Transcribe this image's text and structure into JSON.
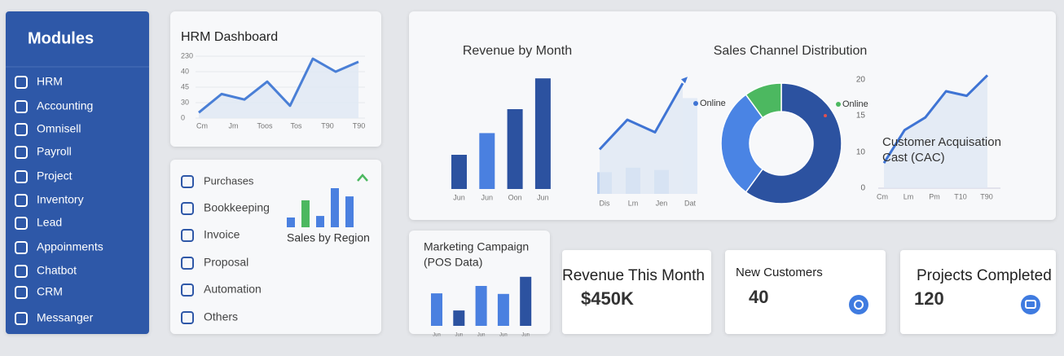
{
  "sidebar": {
    "title": "Modules",
    "items": [
      "HRM",
      "Accounting",
      "Omnisell",
      "Payroll",
      "Project",
      "Inventory",
      "Lead",
      "Appoinments",
      "Chatbot",
      "CRM",
      "Messanger"
    ]
  },
  "hrm_chart": {
    "type": "line",
    "title": "HRM Dashboard",
    "y_labels": [
      "230",
      "40",
      "45",
      "30",
      "0"
    ],
    "x_labels": [
      "Cm",
      "Jm",
      "Toos",
      "Tos",
      "T90",
      "T90"
    ],
    "values": [
      9,
      39,
      30,
      59,
      20,
      96,
      75,
      91
    ],
    "color": "#4a7fd6"
  },
  "module_list": {
    "items": [
      "Purchases",
      "Bookkeeping",
      "Invoice",
      "Proposal",
      "Automation",
      "Others"
    ]
  },
  "sales_region": {
    "type": "bar",
    "title": "Sales by Region",
    "values": [
      25,
      69,
      29,
      100,
      79
    ],
    "colors": [
      "#4a80e0",
      "#4cb860",
      "#4a80e0",
      "#4a80e0",
      "#4a80e0"
    ]
  },
  "revenue_month": {
    "type": "bar",
    "title": "Revenue by Month",
    "categories": [
      "Jun",
      "Jun",
      "Oon",
      "Jun"
    ],
    "values": [
      30,
      49,
      70,
      97
    ],
    "colors": [
      "#2c52a0",
      "#4a80e0",
      "#2c52a0",
      "#2c52a0"
    ]
  },
  "trend": {
    "type": "line",
    "legend": "Online",
    "categories": [
      "Dis",
      "Lm",
      "Jen",
      "Dat"
    ],
    "values": [
      39,
      65,
      54,
      97
    ],
    "bar_values": [
      19,
      23,
      21,
      84
    ],
    "color": "#3f74d4"
  },
  "sales_channel": {
    "type": "pie",
    "title": "Sales Channel Distribution",
    "legend": "Online",
    "values": [
      60,
      30,
      10
    ],
    "colors": [
      "#2c52a0",
      "#4a84e4",
      "#4cb860"
    ]
  },
  "cac": {
    "type": "line",
    "title_lines": [
      "Customer Acquisation",
      "Cast (CAC)"
    ],
    "y_labels": [
      "20",
      "15",
      "10",
      "0"
    ],
    "x_labels": [
      "Cm",
      "Lm",
      "Pm",
      "T10",
      "T90"
    ],
    "values": [
      22,
      51,
      62,
      85,
      81,
      99
    ],
    "color": "#3f74d4"
  },
  "marketing": {
    "type": "bar",
    "title_lines": [
      "Marketing Campaign",
      "(POS Data)"
    ],
    "categories": [
      "Jun",
      "Jun",
      "Jun",
      "Jun",
      "Jun"
    ],
    "values": [
      57,
      27,
      70,
      56,
      86
    ],
    "colors": [
      "#4a80e0",
      "#2c52a0",
      "#4a80e0",
      "#4a80e0",
      "#2c52a0"
    ]
  },
  "kpis": [
    {
      "label": "Revenue This Month",
      "value": "$450K"
    },
    {
      "label": "New Customers",
      "value": "40"
    },
    {
      "label": "Projects Completed",
      "value": "120"
    }
  ]
}
